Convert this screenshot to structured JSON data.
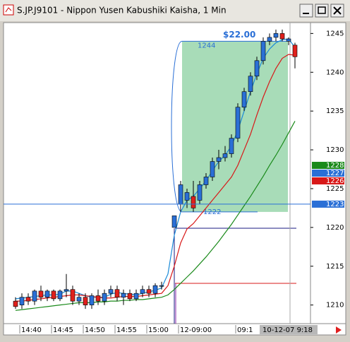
{
  "window_title": "S.JP.J9101 - Nippon Yusen Kabushiki Kaisha, 1 Min",
  "chart_data": {
    "type": "candlestick",
    "categories": [
      null,
      null,
      "14:40",
      null,
      null,
      null,
      null,
      "14:45",
      null,
      null,
      null,
      null,
      "14:50",
      null,
      null,
      null,
      null,
      "14:55",
      null,
      null,
      null,
      null,
      "15:00",
      null,
      null,
      null,
      null,
      "12-09:00",
      null,
      null,
      null,
      null,
      null,
      null,
      null,
      null,
      "09:1",
      null,
      null,
      null,
      null,
      null,
      null,
      null,
      null
    ],
    "open": [
      1210.5,
      1210,
      1211,
      1210.5,
      1211.8,
      1211,
      1211.8,
      1210.8,
      1211.8,
      1212,
      1210.5,
      1211,
      1210,
      1211.2,
      1210.5,
      1211.5,
      1212,
      1211,
      1211.5,
      1210.8,
      1211.5,
      1212,
      1211.5,
      1212.5,
      null,
      1220,
      1223,
      1223.5,
      1224,
      1223.5,
      1225.5,
      1226.5,
      1228.5,
      1229,
      1229.5,
      1231.5,
      1235.5,
      1237.5,
      1239.5,
      1241.5,
      1244,
      1244.5,
      1245,
      1244,
      1243.5
    ],
    "high": [
      1211,
      1211.5,
      1211.5,
      1212,
      1212.5,
      1212,
      1212,
      1212,
      1214,
      1212.5,
      1211.5,
      1211.5,
      1211.5,
      1212,
      1212,
      1212.5,
      1212.5,
      1212,
      1212,
      1212,
      1212.5,
      1212.5,
      1212.8,
      1213,
      null,
      1221.5,
      1226,
      1225,
      1226,
      1226,
      1227,
      1229,
      1230,
      1230.5,
      1232,
      1236,
      1238,
      1240,
      1242,
      1244.5,
      1245,
      1245.5,
      1245.5,
      1244.5,
      1243.8
    ],
    "low": [
      1209.5,
      1209.5,
      1210,
      1210,
      1210.5,
      1210.5,
      1210.5,
      1210.5,
      1211,
      1210,
      1210,
      1209.5,
      1209.5,
      1210,
      1210,
      1211,
      1210.5,
      1210,
      1210.5,
      1210.5,
      1211,
      1211,
      1211,
      1212,
      null,
      1220,
      1222,
      1222.5,
      1222,
      1223,
      1225,
      1226,
      1227.5,
      1228.5,
      1229,
      1231,
      1235,
      1237,
      1239,
      1241,
      1243.5,
      1244,
      1244,
      1243.5,
      1240.5
    ],
    "close": [
      1209.8,
      1211,
      1210.5,
      1211.8,
      1211,
      1211.8,
      1210.8,
      1211.8,
      1212,
      1210.5,
      1211,
      1210,
      1211.2,
      1210.5,
      1211.5,
      1212,
      1211,
      1211.5,
      1210.8,
      1211.5,
      1212,
      1211.5,
      1212.5,
      1212.5,
      null,
      1221.5,
      1225.5,
      1224.5,
      1222.5,
      1225.5,
      1226.5,
      1228.5,
      1229,
      1229.5,
      1231.5,
      1235.5,
      1237.5,
      1239.5,
      1241.5,
      1244,
      1244.5,
      1245,
      1244.3,
      1244.3,
      1242
    ],
    "up_color": "#2a6fd6",
    "down_color": "#e0201c",
    "series": [
      {
        "color": "#1a8ad8",
        "values": [
          1210.8,
          1210.9,
          1211,
          1211.1,
          1211.2,
          1211.3,
          1211.3,
          1211.4,
          1211.8,
          1211.8,
          1211.5,
          1211.2,
          1211,
          1211,
          1211,
          1211.4,
          1211.6,
          1211.5,
          1211.4,
          1211.3,
          1211.5,
          1211.7,
          1211.9,
          1212.2,
          1214,
          1219,
          1222,
          1223.5,
          1224,
          1225,
          1226,
          1227.3,
          1228.5,
          1229.3,
          1230.5,
          1232.5,
          1235,
          1237.5,
          1239.8,
          1241.8,
          1243,
          1243.8,
          1244.2,
          1244.3,
          1243.2
        ]
      },
      {
        "color": "#d81818",
        "values": [
          1210.5,
          1210.5,
          1210.6,
          1210.7,
          1210.8,
          1210.9,
          1211,
          1211.1,
          1211.2,
          1211.3,
          1211.3,
          1211.2,
          1211.1,
          1211,
          1210.9,
          1210.9,
          1211,
          1211.1,
          1211.1,
          1211.1,
          1211.2,
          1211.3,
          1211.4,
          1211.5,
          1212.5,
          1215,
          1218,
          1219.8,
          1220.5,
          1221.5,
          1222.5,
          1223.5,
          1224.5,
          1225.5,
          1226.5,
          1228,
          1230,
          1232,
          1234.5,
          1236.8,
          1238.8,
          1240.5,
          1241.8,
          1242.3,
          1242.2
        ]
      },
      {
        "color": "#1a8a1a",
        "values": [
          1209.3,
          1209.4,
          1209.5,
          1209.6,
          1209.7,
          1209.8,
          1209.9,
          1210,
          1210.1,
          1210.2,
          1210.3,
          1210.3,
          1210.3,
          1210.4,
          1210.4,
          1210.5,
          1210.5,
          1210.6,
          1210.6,
          1210.7,
          1210.7,
          1210.8,
          1210.9,
          1211,
          1211.3,
          1212,
          1212.8,
          1213.6,
          1214.4,
          1215.3,
          1216.2,
          1217.2,
          1218.2,
          1219.3,
          1220.4,
          1221.6,
          1222.8,
          1224,
          1225.3,
          1226.6,
          1228,
          1229.3,
          1230.7,
          1232.2,
          1233.7
        ]
      }
    ],
    "ylim": [
      1207.6,
      1246.4
    ],
    "yticks": [
      1210,
      1215,
      1220,
      1225,
      1230,
      1235,
      1240,
      1245
    ],
    "price_badges": [
      {
        "value": 1228,
        "color": "#1a8a1a"
      },
      {
        "value": 1227,
        "color": "#2a6fd6"
      },
      {
        "value": 1226,
        "color": "#d81818"
      },
      {
        "value": 1223,
        "color": "#2a6fd6",
        "line": true
      }
    ],
    "measure": {
      "high": 1244,
      "low": 1222,
      "label": "$22.00"
    },
    "cursor_label": "10-12-07  9:18"
  }
}
